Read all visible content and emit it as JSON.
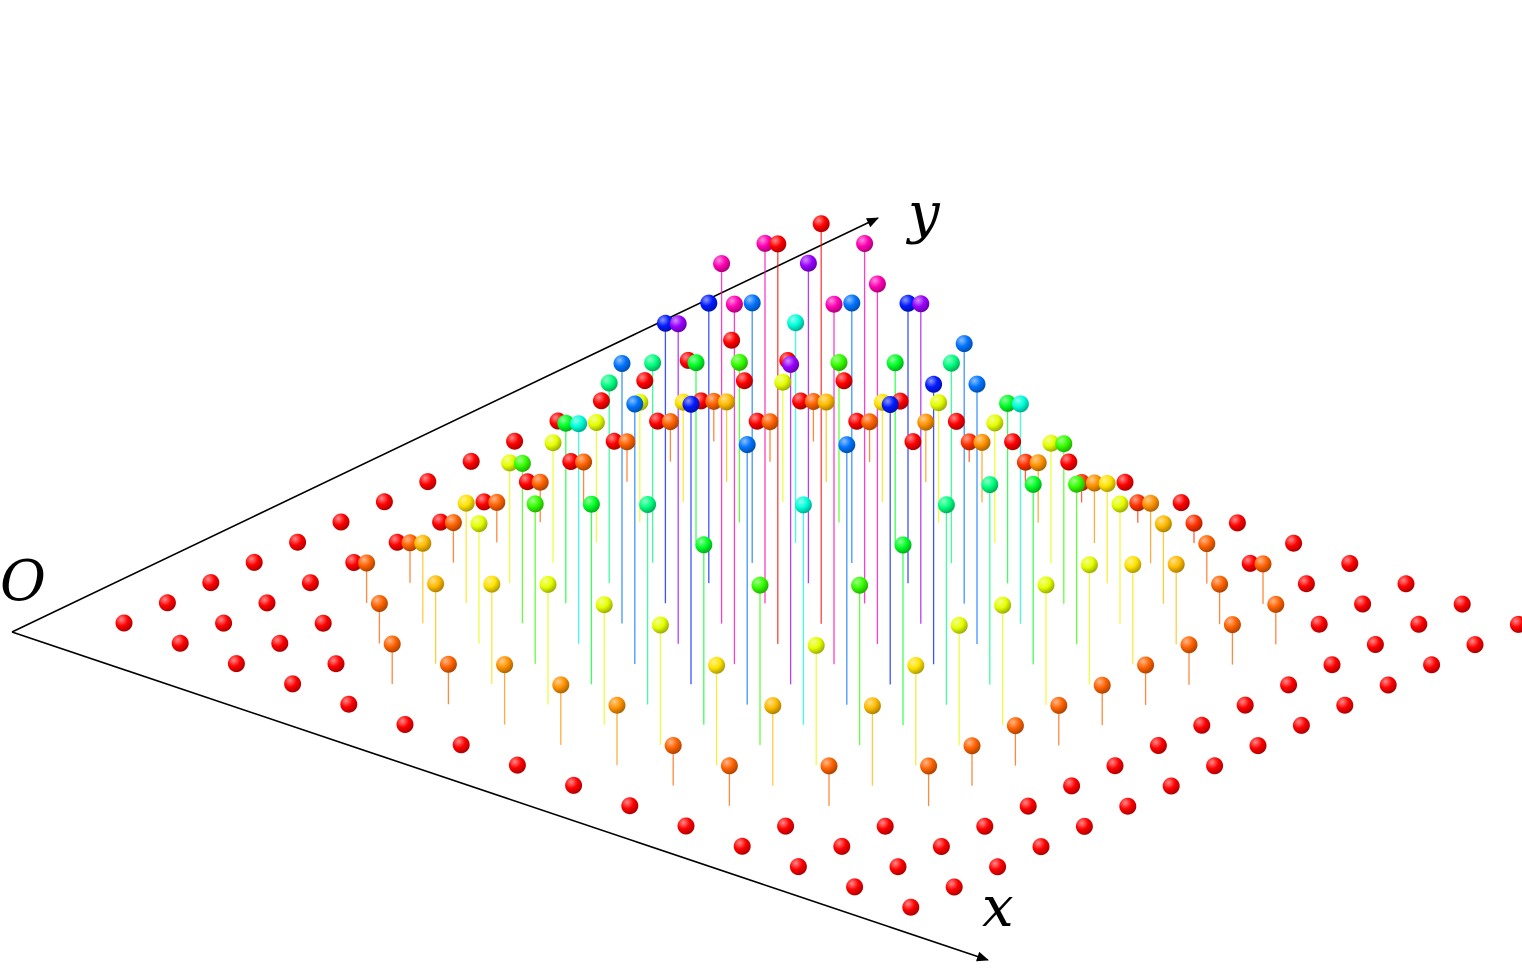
{
  "labels": {
    "origin": "O",
    "x_axis": "x",
    "y_axis": "y"
  },
  "scene": {
    "grid_size": 15,
    "color_scale": [
      "#ff0000",
      "#ff8c00",
      "#ffff00",
      "#00ff00",
      "#00ffff",
      "#0000ff",
      "#ff00ff",
      "#ff0000"
    ],
    "heights": [
      [
        0,
        0,
        0,
        0,
        0,
        0,
        0,
        0,
        0,
        0,
        0,
        0,
        0,
        0,
        0
      ],
      [
        0,
        0,
        0,
        0,
        0,
        0,
        0,
        0,
        0,
        0,
        0,
        0,
        0,
        0,
        0
      ],
      [
        0,
        0,
        0,
        0.1,
        0.1,
        0.1,
        0.1,
        0.1,
        0.1,
        0.1,
        0.1,
        0.1,
        0,
        0,
        0
      ],
      [
        0,
        0,
        0.1,
        0.2,
        0.25,
        0.3,
        0.3,
        0.3,
        0.3,
        0.25,
        0.2,
        0.1,
        0.1,
        0,
        0
      ],
      [
        0,
        0.1,
        0.2,
        0.3,
        0.4,
        0.45,
        0.5,
        0.5,
        0.45,
        0.4,
        0.3,
        0.2,
        0.1,
        0,
        0
      ],
      [
        0,
        0.1,
        0.25,
        0.4,
        0.55,
        0.65,
        0.7,
        0.7,
        0.65,
        0.55,
        0.4,
        0.25,
        0.15,
        0.05,
        0
      ],
      [
        0,
        0.15,
        0.3,
        0.45,
        0.65,
        0.8,
        0.9,
        0.9,
        0.8,
        0.65,
        0.45,
        0.3,
        0.15,
        0.05,
        0
      ],
      [
        0,
        0.15,
        0.3,
        0.5,
        0.7,
        0.9,
        1.0,
        1.0,
        0.9,
        0.7,
        0.5,
        0.3,
        0.15,
        0.05,
        0
      ],
      [
        0,
        0.15,
        0.3,
        0.45,
        0.65,
        0.8,
        0.9,
        0.9,
        0.8,
        0.65,
        0.45,
        0.3,
        0.15,
        0.05,
        0
      ],
      [
        0,
        0.1,
        0.25,
        0.4,
        0.55,
        0.65,
        0.7,
        0.7,
        0.65,
        0.55,
        0.4,
        0.25,
        0.15,
        0.05,
        0
      ],
      [
        0,
        0.1,
        0.2,
        0.3,
        0.4,
        0.45,
        0.5,
        0.5,
        0.45,
        0.4,
        0.3,
        0.2,
        0.1,
        0,
        0
      ],
      [
        0,
        0,
        0.1,
        0.2,
        0.25,
        0.3,
        0.3,
        0.3,
        0.3,
        0.25,
        0.2,
        0.1,
        0.1,
        0,
        0
      ],
      [
        0,
        0,
        0,
        0.1,
        0.1,
        0.1,
        0.1,
        0.1,
        0.1,
        0.1,
        0.1,
        0.1,
        0,
        0,
        0
      ],
      [
        0,
        0,
        0,
        0,
        0,
        0,
        0,
        0,
        0,
        0,
        0,
        0,
        0,
        0,
        0
      ],
      [
        0,
        0,
        0,
        0,
        0,
        0,
        0,
        0,
        0,
        0,
        0,
        0,
        0,
        0,
        0
      ]
    ]
  }
}
